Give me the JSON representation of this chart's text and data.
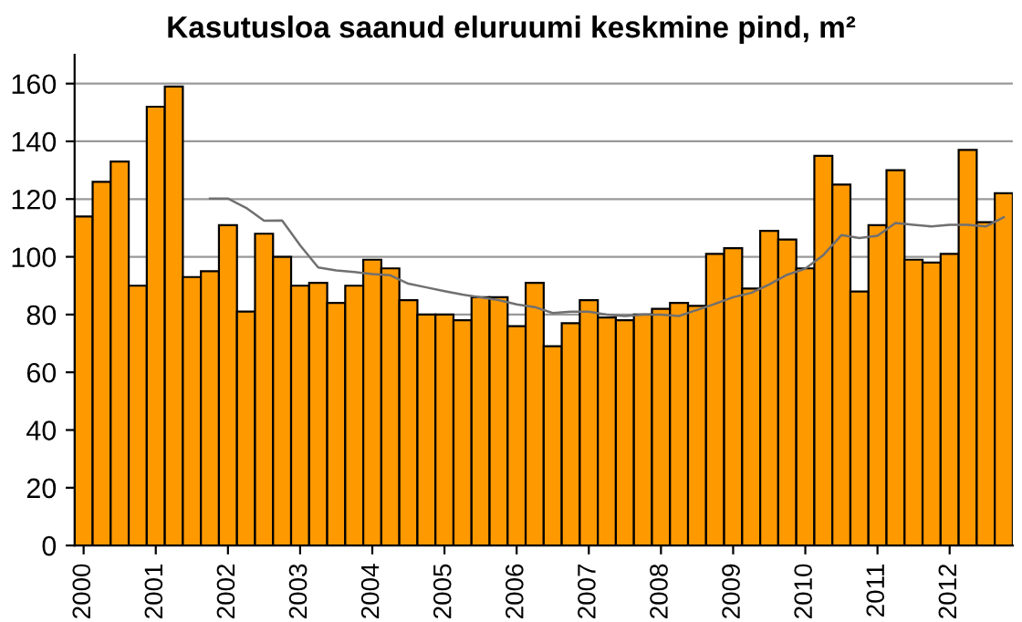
{
  "chart_data": {
    "type": "bar",
    "title": "Kasutusloa saanud eluruumi keskmine pind, m²",
    "categories": [
      "2000",
      null,
      null,
      null,
      "2001",
      null,
      null,
      null,
      "2002",
      null,
      null,
      null,
      "2003",
      null,
      null,
      null,
      "2004",
      null,
      null,
      null,
      "2005",
      null,
      null,
      null,
      "2006",
      null,
      null,
      null,
      "2007",
      null,
      null,
      null,
      "2008",
      null,
      null,
      null,
      "2009",
      null,
      null,
      null,
      "2010",
      null,
      null,
      null,
      "2011",
      null,
      null,
      null,
      "2012",
      null,
      null,
      null
    ],
    "series": [
      {
        "color": "#ff9900",
        "values": [
          114,
          126,
          133,
          90,
          152,
          159,
          93,
          95,
          111,
          81,
          108,
          100,
          90,
          91,
          84,
          90,
          99,
          96,
          85,
          80,
          80,
          78,
          86,
          86,
          76,
          91,
          69,
          77,
          85,
          79,
          78,
          80,
          82,
          84,
          83,
          101,
          103,
          89,
          109,
          106,
          96,
          135,
          125,
          88,
          111,
          130,
          99,
          98,
          101,
          137,
          112,
          122
        ]
      },
      {
        "type": "line",
        "color": "#707070",
        "values": [
          null,
          null,
          null,
          null,
          null,
          null,
          null,
          120.2,
          120.2,
          117,
          112.5,
          112.6,
          104,
          96.3,
          95.3,
          94.7,
          94,
          93.6,
          90.7,
          89.4,
          88.1,
          86.9,
          86,
          85,
          83.5,
          82.6,
          80.5,
          81,
          81,
          80,
          79.5,
          80,
          80,
          79.5,
          81.6,
          83.7,
          86,
          87.5,
          90.4,
          93.8,
          95.9,
          100.6,
          107.5,
          106.5,
          107.3,
          111.7,
          111.1,
          110.5,
          111.1,
          111.1,
          110.5,
          113.7
        ]
      }
    ],
    "ylim": [
      0,
      170
    ],
    "yticks": [
      0,
      20,
      40,
      60,
      80,
      100,
      120,
      140,
      160
    ],
    "grid": "y",
    "marker": "none",
    "line_style": "solid"
  }
}
